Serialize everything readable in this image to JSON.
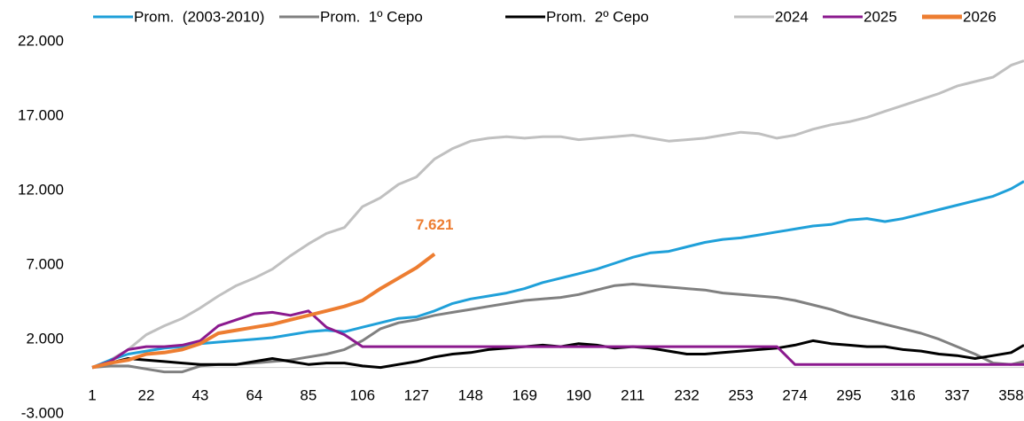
{
  "chart_data": {
    "type": "line",
    "x": [
      1,
      8,
      15,
      22,
      29,
      36,
      43,
      50,
      57,
      64,
      71,
      78,
      85,
      92,
      99,
      106,
      113,
      120,
      127,
      134,
      141,
      148,
      155,
      162,
      169,
      176,
      183,
      190,
      197,
      204,
      211,
      218,
      225,
      232,
      239,
      246,
      253,
      260,
      267,
      274,
      281,
      288,
      295,
      302,
      309,
      316,
      323,
      330,
      337,
      344,
      351,
      358,
      363
    ],
    "xlim": [
      1,
      363
    ],
    "xticks": [
      1,
      22,
      43,
      64,
      85,
      106,
      127,
      148,
      169,
      190,
      211,
      232,
      253,
      274,
      295,
      316,
      337,
      358
    ],
    "ylim": [
      -3000,
      22000
    ],
    "yticks": [
      {
        "value": -3000,
        "label": "-3.000"
      },
      {
        "value": 2000,
        "label": "2.000"
      },
      {
        "value": 7000,
        "label": "7.000"
      },
      {
        "value": 12000,
        "label": "12.000"
      },
      {
        "value": 17000,
        "label": "17.000"
      },
      {
        "value": 22000,
        "label": "22.000"
      }
    ],
    "grid": false,
    "legend": "top",
    "series": [
      {
        "name": "Prom.  (2003-2010)",
        "color": "#1fa0d9",
        "values": [
          0,
          500,
          900,
          1100,
          1300,
          1400,
          1600,
          1700,
          1800,
          1900,
          2000,
          2200,
          2400,
          2500,
          2400,
          2700,
          3000,
          3300,
          3400,
          3800,
          4300,
          4600,
          4800,
          5000,
          5300,
          5700,
          6000,
          6300,
          6600,
          7000,
          7400,
          7700,
          7800,
          8100,
          8400,
          8600,
          8700,
          8900,
          9100,
          9300,
          9500,
          9600,
          9900,
          10000,
          9800,
          10000,
          10300,
          10600,
          10900,
          11200,
          11500,
          12000,
          12500
        ]
      },
      {
        "name": "Prom.  1º Cepo",
        "color": "#808080",
        "values": [
          0,
          100,
          100,
          -100,
          -300,
          -300,
          100,
          200,
          200,
          300,
          400,
          500,
          700,
          900,
          1200,
          1800,
          2600,
          3000,
          3200,
          3500,
          3700,
          3900,
          4100,
          4300,
          4500,
          4600,
          4700,
          4900,
          5200,
          5500,
          5600,
          5500,
          5400,
          5300,
          5200,
          5000,
          4900,
          4800,
          4700,
          4500,
          4200,
          3900,
          3500,
          3200,
          2900,
          2600,
          2300,
          1900,
          1400,
          900,
          300,
          200,
          400
        ]
      },
      {
        "name": "Prom.  2º Cepo",
        "color": "#000000",
        "values": [
          0,
          300,
          600,
          500,
          400,
          300,
          200,
          200,
          200,
          400,
          600,
          400,
          200,
          300,
          300,
          100,
          0,
          200,
          400,
          700,
          900,
          1000,
          1200,
          1300,
          1400,
          1500,
          1400,
          1600,
          1500,
          1300,
          1400,
          1300,
          1100,
          900,
          900,
          1000,
          1100,
          1200,
          1300,
          1500,
          1800,
          1600,
          1500,
          1400,
          1400,
          1200,
          1100,
          900,
          800,
          600,
          800,
          1000,
          1500
        ]
      },
      {
        "name": "2024",
        "color": "#c0c0c0",
        "values": [
          0,
          500,
          1200,
          2200,
          2800,
          3300,
          4000,
          4800,
          5500,
          6000,
          6600,
          7500,
          8300,
          9000,
          9400,
          10800,
          11400,
          12300,
          12800,
          14000,
          14700,
          15200,
          15400,
          15500,
          15400,
          15500,
          15500,
          15300,
          15400,
          15500,
          15600,
          15400,
          15200,
          15300,
          15400,
          15600,
          15800,
          15700,
          15400,
          15600,
          16000,
          16300,
          16500,
          16800,
          17200,
          17600,
          18000,
          18400,
          18900,
          19200,
          19500,
          20300,
          20600
        ]
      },
      {
        "name": "2025",
        "color": "#8b1a8e",
        "values": [
          0,
          400,
          1200,
          1400,
          1400,
          1500,
          1800,
          2800,
          3200,
          3600,
          3700,
          3500,
          3800,
          2700,
          2200,
          1400,
          1400,
          1400,
          1400,
          1400,
          1400,
          1400,
          1400,
          1400,
          1400,
          1400,
          1400,
          1400,
          1400,
          1400,
          1400,
          1400,
          1400,
          1400,
          1400,
          1400,
          1400,
          1400,
          1400,
          200,
          200,
          200,
          200,
          200,
          200,
          200,
          200,
          200,
          200,
          200,
          200,
          200,
          200
        ]
      },
      {
        "name": "2026",
        "color": "#ed7d31",
        "values": [
          0,
          300,
          500,
          900,
          1000,
          1200,
          1600,
          2300,
          2500,
          2700,
          2900,
          3200,
          3500,
          3800,
          4100,
          4500,
          5300,
          6000,
          6700,
          7621,
          null,
          null,
          null,
          null,
          null,
          null,
          null,
          null,
          null,
          null,
          null,
          null,
          null,
          null,
          null,
          null,
          null,
          null,
          null,
          null,
          null,
          null,
          null,
          null,
          null,
          null,
          null,
          null,
          null,
          null,
          null,
          null,
          null
        ],
        "value_labels": [
          null,
          null,
          null,
          null,
          null,
          null,
          null,
          null,
          null,
          null,
          null,
          null,
          null,
          null,
          null,
          null,
          null,
          null,
          null,
          "7.621",
          null,
          null,
          null,
          null,
          null,
          null,
          null,
          null,
          null,
          null,
          null,
          null,
          null,
          null,
          null,
          null,
          null,
          null,
          null,
          null,
          null,
          null,
          null,
          null,
          null,
          null,
          null,
          null,
          null,
          null,
          null,
          null,
          null
        ]
      }
    ]
  }
}
